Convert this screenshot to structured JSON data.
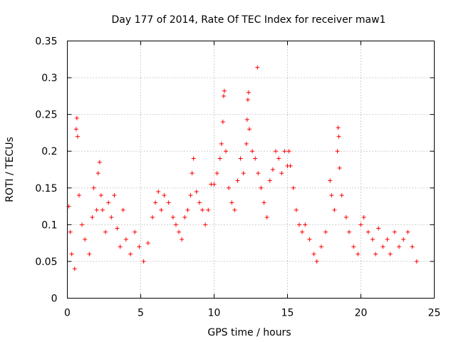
{
  "chart_data": {
    "type": "scatter",
    "title": "Day 177 of 2014, Rate Of TEC Index for receiver maw1",
    "xlabel": "GPS time / hours",
    "ylabel": "ROTI / TECUs",
    "xlim": [
      0,
      25
    ],
    "ylim": [
      0,
      0.35
    ],
    "xticks": [
      0,
      5,
      10,
      15,
      20,
      25
    ],
    "xtick_labels": [
      "0",
      "5",
      "10",
      "15",
      "20",
      "25"
    ],
    "yticks": [
      0,
      0.05,
      0.1,
      0.15,
      0.2,
      0.25,
      0.3,
      0.35
    ],
    "ytick_labels": [
      "0",
      "0.05",
      "0.1",
      "0.15",
      "0.2",
      "0.25",
      "0.3",
      "0.35"
    ],
    "grid": true,
    "legend": "none",
    "marker": "plus",
    "series_color": "#ff0000",
    "series": [
      {
        "name": "ROTI",
        "points": [
          [
            0.1,
            0.125
          ],
          [
            0.2,
            0.09
          ],
          [
            0.3,
            0.06
          ],
          [
            0.5,
            0.04
          ],
          [
            0.6,
            0.23
          ],
          [
            0.65,
            0.245
          ],
          [
            0.7,
            0.22
          ],
          [
            0.8,
            0.14
          ],
          [
            1.0,
            0.1
          ],
          [
            1.2,
            0.08
          ],
          [
            1.5,
            0.06
          ],
          [
            1.7,
            0.11
          ],
          [
            1.8,
            0.15
          ],
          [
            2.0,
            0.12
          ],
          [
            2.1,
            0.17
          ],
          [
            2.2,
            0.185
          ],
          [
            2.3,
            0.14
          ],
          [
            2.4,
            0.12
          ],
          [
            2.6,
            0.09
          ],
          [
            2.8,
            0.13
          ],
          [
            3.0,
            0.11
          ],
          [
            3.2,
            0.14
          ],
          [
            3.4,
            0.095
          ],
          [
            3.6,
            0.07
          ],
          [
            3.8,
            0.12
          ],
          [
            4.0,
            0.08
          ],
          [
            4.3,
            0.06
          ],
          [
            4.6,
            0.09
          ],
          [
            4.9,
            0.07
          ],
          [
            5.2,
            0.05
          ],
          [
            5.5,
            0.075
          ],
          [
            5.8,
            0.11
          ],
          [
            6.0,
            0.13
          ],
          [
            6.2,
            0.145
          ],
          [
            6.4,
            0.12
          ],
          [
            6.6,
            0.14
          ],
          [
            6.9,
            0.13
          ],
          [
            7.2,
            0.11
          ],
          [
            7.4,
            0.1
          ],
          [
            7.6,
            0.09
          ],
          [
            7.8,
            0.08
          ],
          [
            8.0,
            0.11
          ],
          [
            8.2,
            0.12
          ],
          [
            8.4,
            0.14
          ],
          [
            8.5,
            0.17
          ],
          [
            8.6,
            0.19
          ],
          [
            8.8,
            0.145
          ],
          [
            9.0,
            0.13
          ],
          [
            9.2,
            0.12
          ],
          [
            9.4,
            0.1
          ],
          [
            9.6,
            0.12
          ],
          [
            9.8,
            0.155
          ],
          [
            10.0,
            0.155
          ],
          [
            10.2,
            0.17
          ],
          [
            10.4,
            0.19
          ],
          [
            10.5,
            0.21
          ],
          [
            10.6,
            0.24
          ],
          [
            10.65,
            0.275
          ],
          [
            10.7,
            0.282
          ],
          [
            10.8,
            0.2
          ],
          [
            11.0,
            0.15
          ],
          [
            11.2,
            0.13
          ],
          [
            11.4,
            0.12
          ],
          [
            11.6,
            0.16
          ],
          [
            11.8,
            0.19
          ],
          [
            12.0,
            0.17
          ],
          [
            12.2,
            0.21
          ],
          [
            12.25,
            0.243
          ],
          [
            12.3,
            0.27
          ],
          [
            12.35,
            0.28
          ],
          [
            12.4,
            0.23
          ],
          [
            12.6,
            0.2
          ],
          [
            12.8,
            0.19
          ],
          [
            12.95,
            0.314
          ],
          [
            13.0,
            0.17
          ],
          [
            13.2,
            0.15
          ],
          [
            13.4,
            0.13
          ],
          [
            13.6,
            0.11
          ],
          [
            13.8,
            0.16
          ],
          [
            14.0,
            0.175
          ],
          [
            14.2,
            0.2
          ],
          [
            14.4,
            0.19
          ],
          [
            14.6,
            0.17
          ],
          [
            14.8,
            0.2
          ],
          [
            15.0,
            0.18
          ],
          [
            15.1,
            0.2
          ],
          [
            15.2,
            0.18
          ],
          [
            15.4,
            0.15
          ],
          [
            15.6,
            0.12
          ],
          [
            15.8,
            0.1
          ],
          [
            16.0,
            0.09
          ],
          [
            16.2,
            0.1
          ],
          [
            16.5,
            0.08
          ],
          [
            16.8,
            0.06
          ],
          [
            17.0,
            0.05
          ],
          [
            17.3,
            0.07
          ],
          [
            17.6,
            0.09
          ],
          [
            17.9,
            0.16
          ],
          [
            18.0,
            0.14
          ],
          [
            18.2,
            0.12
          ],
          [
            18.4,
            0.2
          ],
          [
            18.45,
            0.232
          ],
          [
            18.5,
            0.22
          ],
          [
            18.55,
            0.177
          ],
          [
            18.7,
            0.14
          ],
          [
            19.0,
            0.11
          ],
          [
            19.2,
            0.09
          ],
          [
            19.5,
            0.07
          ],
          [
            19.8,
            0.06
          ],
          [
            20.0,
            0.1
          ],
          [
            20.2,
            0.11
          ],
          [
            20.5,
            0.09
          ],
          [
            20.8,
            0.08
          ],
          [
            21.0,
            0.06
          ],
          [
            21.2,
            0.095
          ],
          [
            21.5,
            0.07
          ],
          [
            21.8,
            0.08
          ],
          [
            22.0,
            0.06
          ],
          [
            22.3,
            0.09
          ],
          [
            22.6,
            0.07
          ],
          [
            22.9,
            0.08
          ],
          [
            23.2,
            0.09
          ],
          [
            23.5,
            0.07
          ],
          [
            23.8,
            0.05
          ]
        ]
      }
    ]
  }
}
